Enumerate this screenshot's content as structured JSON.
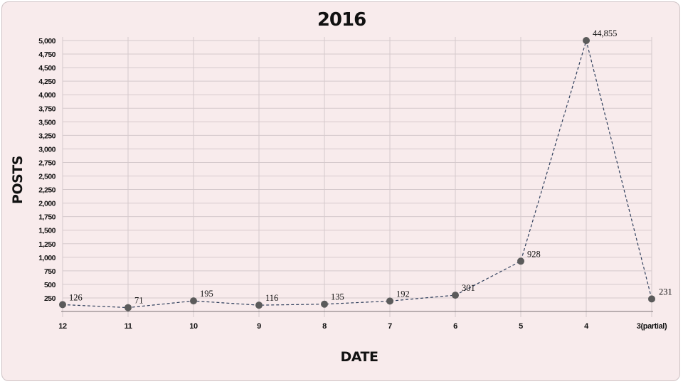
{
  "chart_data": {
    "type": "line",
    "title": "2016",
    "xlabel": "DATE",
    "ylabel": "POSTS",
    "categories": [
      "12",
      "11",
      "10",
      "9",
      "8",
      "7",
      "6",
      "5",
      "4",
      "3(partial)"
    ],
    "series": [
      {
        "values": [
          126,
          71,
          195,
          116,
          135,
          192,
          301,
          928,
          44855,
          231
        ],
        "data_labels": [
          "126",
          "71",
          "195",
          "116",
          "135",
          "192",
          "301",
          "928",
          "44,855",
          "231"
        ],
        "plotted_values": [
          126,
          71,
          195,
          116,
          135,
          192,
          301,
          928,
          5000,
          231
        ]
      }
    ],
    "ylim": [
      0,
      5000
    ],
    "yticks": [
      250,
      500,
      750,
      1000,
      1250,
      1500,
      1750,
      2000,
      2250,
      2500,
      2750,
      3000,
      3250,
      3500,
      3750,
      4000,
      4250,
      4500,
      4750,
      5000
    ],
    "ytick_labels": [
      "250",
      "500",
      "750",
      "1,000",
      "1,250",
      "1,500",
      "1,750",
      "2,000",
      "2,250",
      "2,500",
      "2,750",
      "3,000",
      "3,250",
      "3,500",
      "3,750",
      "4,000",
      "4,250",
      "4,500",
      "4,750",
      "5,000"
    ],
    "grid": true,
    "line_style": "dashed",
    "colors": {
      "background": "#f8ebec",
      "line": "#2f3f5c",
      "marker": "#5b5b5b",
      "grid": "#d5c9cc"
    }
  }
}
